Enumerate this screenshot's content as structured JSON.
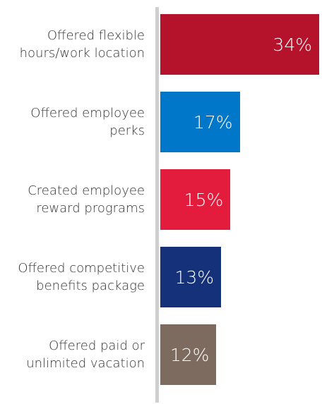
{
  "chart_data": {
    "type": "bar",
    "orientation": "horizontal",
    "categories": [
      "Offered flexible hours/work location",
      "Offered employee perks",
      "Created employee reward programs",
      "Offered competitive benefits package",
      "Offered paid or unlimited vacation"
    ],
    "values": [
      34,
      17,
      15,
      13,
      12
    ],
    "value_labels": [
      "34%",
      "17%",
      "15%",
      "13%",
      "12%"
    ],
    "colors": [
      "#b5132b",
      "#0077c8",
      "#e31b3d",
      "#14317a",
      "#7d6b5f"
    ]
  }
}
